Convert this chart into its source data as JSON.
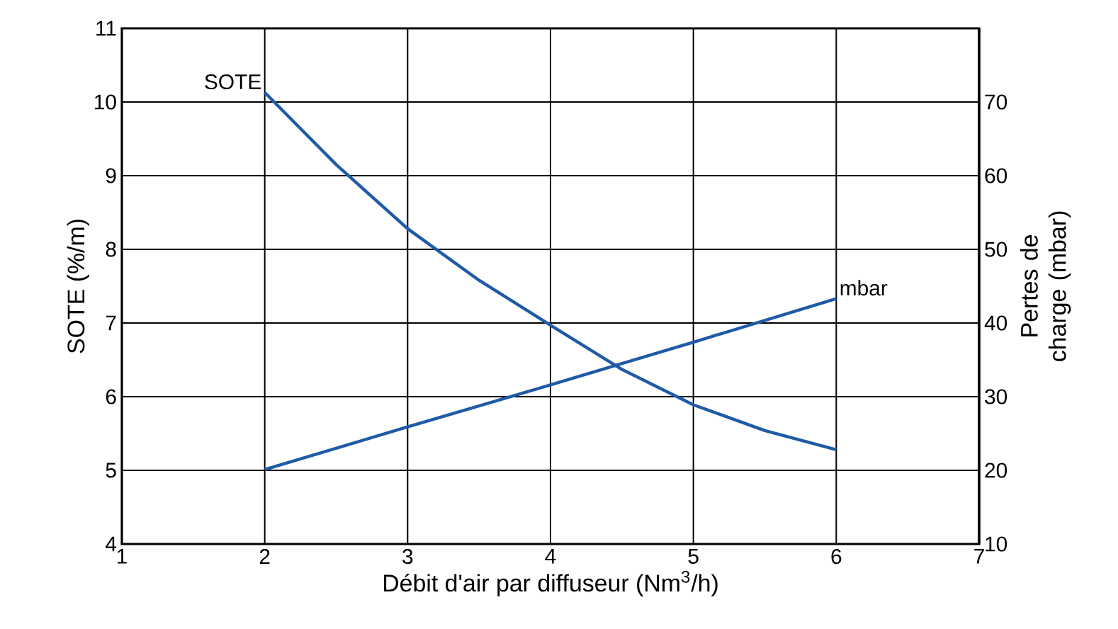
{
  "chart_data": {
    "type": "line",
    "xlabel": "Débit d'air par diffuseur (Nm$^{3}$/h)",
    "ylabel": "SOTE (%/m)",
    "y2label": "Pertes de charge (mbar)",
    "xlim": [
      1,
      7
    ],
    "xticks": [
      1,
      2,
      3,
      4,
      5,
      6,
      7
    ],
    "ylim": [
      4,
      11
    ],
    "yticks": [
      4,
      5,
      6,
      7,
      8,
      9,
      10,
      11
    ],
    "y2lim": [
      10,
      80
    ],
    "y2ticks": [
      10,
      20,
      30,
      40,
      50,
      60,
      70
    ],
    "grid": true,
    "marker": "none",
    "line_style": "solid",
    "series": [
      {
        "name": "SOTE",
        "color": "#1f5aa6",
        "x": [
          2,
          2.5,
          3,
          3.5,
          4,
          4.5,
          5,
          5.5,
          6
        ],
        "values": [
          10.13,
          9.15,
          8.28,
          7.58,
          6.97,
          6.37,
          5.89,
          5.54,
          5.28
        ]
      },
      {
        "name": "mbar",
        "color": "#1f5aa6",
        "axis": "y2",
        "x": [
          2,
          3,
          4,
          5,
          6
        ],
        "values": [
          20.1,
          25.9,
          31.6,
          37.4,
          43.3
        ]
      }
    ]
  }
}
